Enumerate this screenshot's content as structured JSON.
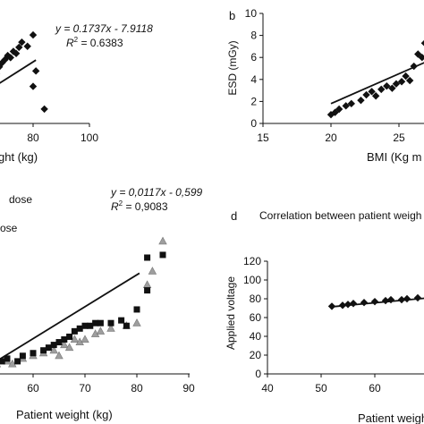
{
  "colors": {
    "ink": "#111111",
    "gray_marker": "#9e9e9e"
  },
  "chart_data": [
    {
      "id": "a",
      "panel_label": "",
      "type": "scatter",
      "xlabel": "ght (kg)",
      "ylabel": "",
      "x_ticks": [
        80,
        100
      ],
      "equation": "y = 0.1737x - 7.9118",
      "r2_label": "R",
      "r2_value": " = 0.6383",
      "fit": {
        "slope": 0.1737,
        "intercept": -7.9118
      },
      "series": [
        {
          "marker": "diamond",
          "points": [
            [
              58,
              2.1
            ],
            [
              60,
              2.8
            ],
            [
              61,
              3.4
            ],
            [
              62,
              3.2
            ],
            [
              63,
              3.9
            ],
            [
              64,
              4.6
            ],
            [
              65,
              4.2
            ],
            [
              66,
              5.0
            ],
            [
              67,
              4.8
            ],
            [
              68,
              5.5
            ],
            [
              69,
              5.9
            ],
            [
              70,
              6.2
            ],
            [
              71,
              6.6
            ],
            [
              72,
              6.4
            ],
            [
              73,
              7.0
            ],
            [
              74,
              6.8
            ],
            [
              75,
              7.4
            ],
            [
              76,
              7.9
            ],
            [
              78,
              7.5
            ],
            [
              80,
              8.6
            ],
            [
              80,
              3.6
            ],
            [
              81,
              5.1
            ],
            [
              84,
              1.4
            ]
          ]
        }
      ]
    },
    {
      "id": "b",
      "panel_label": "b",
      "type": "scatter",
      "xlabel": "BMI (Kg m",
      "ylabel": "ESD (mGy)",
      "x_ticks": [
        15,
        20,
        25
      ],
      "y_ticks": [
        0,
        2,
        4,
        6,
        8,
        10
      ],
      "fit": {
        "x0": 20,
        "y0": 1.8,
        "x1": 27,
        "y1": 5.6
      },
      "series": [
        {
          "marker": "diamond",
          "points": [
            [
              20,
              0.8
            ],
            [
              20.3,
              1.0
            ],
            [
              20.6,
              1.3
            ],
            [
              21.1,
              1.6
            ],
            [
              21.5,
              1.8
            ],
            [
              22.2,
              2.1
            ],
            [
              22.6,
              2.6
            ],
            [
              23.0,
              2.9
            ],
            [
              23.3,
              2.5
            ],
            [
              23.7,
              3.1
            ],
            [
              24.1,
              3.4
            ],
            [
              24.5,
              3.2
            ],
            [
              24.8,
              3.6
            ],
            [
              25.2,
              3.8
            ],
            [
              25.5,
              4.3
            ],
            [
              25.8,
              3.9
            ],
            [
              26.1,
              5.2
            ],
            [
              26.4,
              6.3
            ],
            [
              26.7,
              6.0
            ],
            [
              26.9,
              7.3
            ]
          ]
        }
      ]
    },
    {
      "id": "c",
      "panel_label": "",
      "type": "scatter",
      "xlabel": "Patient weight (kg)",
      "ylabel": "",
      "x_ticks": [
        60,
        70,
        80,
        90
      ],
      "legend": [
        "dose",
        "ose"
      ],
      "equation": "y = 0,0117x - 0,599",
      "r2_label": "R",
      "r2_value": " = 0,9083",
      "fit": {
        "slope": 0.0117,
        "intercept": -0.599
      },
      "series": [
        {
          "marker": "square",
          "points": [
            [
              51,
              0.005
            ],
            [
              52,
              0.02
            ],
            [
              54,
              0.02
            ],
            [
              55,
              0.03
            ],
            [
              57,
              0.02
            ],
            [
              58,
              0.04
            ],
            [
              60,
              0.05
            ],
            [
              62,
              0.06
            ],
            [
              63,
              0.07
            ],
            [
              64,
              0.08
            ],
            [
              65,
              0.09
            ],
            [
              66,
              0.1
            ],
            [
              67,
              0.11
            ],
            [
              68,
              0.13
            ],
            [
              69,
              0.14
            ],
            [
              70,
              0.15
            ],
            [
              71,
              0.15
            ],
            [
              72,
              0.16
            ],
            [
              73,
              0.16
            ],
            [
              75,
              0.16
            ],
            [
              77,
              0.17
            ],
            [
              78,
              0.15
            ],
            [
              80,
              0.21
            ],
            [
              82,
              0.28
            ],
            [
              82,
              0.4
            ],
            [
              85,
              0.41
            ]
          ]
        },
        {
          "marker": "triangle",
          "points": [
            [
              52,
              0.0
            ],
            [
              53,
              0.01
            ],
            [
              55,
              0.02
            ],
            [
              56,
              0.01
            ],
            [
              58,
              0.03
            ],
            [
              60,
              0.04
            ],
            [
              62,
              0.05
            ],
            [
              64,
              0.06
            ],
            [
              65,
              0.04
            ],
            [
              66,
              0.08
            ],
            [
              67,
              0.07
            ],
            [
              68,
              0.1
            ],
            [
              69,
              0.09
            ],
            [
              70,
              0.1
            ],
            [
              72,
              0.12
            ],
            [
              73,
              0.13
            ],
            [
              75,
              0.14
            ],
            [
              78,
              0.15
            ],
            [
              80,
              0.16
            ],
            [
              82,
              0.3
            ],
            [
              83,
              0.35
            ],
            [
              85,
              0.46
            ]
          ]
        }
      ]
    },
    {
      "id": "d",
      "panel_label": "d",
      "type": "scatter",
      "title": "Correlation between patient weigh",
      "xlabel": "Patient weigh",
      "ylabel": "Applied voltage",
      "x_ticks": [
        40,
        50,
        60
      ],
      "y_ticks": [
        0,
        20,
        40,
        60,
        80,
        100,
        120
      ],
      "fit": {
        "x0": 52,
        "y0": 71.5,
        "x1": 75,
        "y1": 83.5
      },
      "series": [
        {
          "marker": "diamond",
          "points": [
            [
              52,
              72
            ],
            [
              54,
              73
            ],
            [
              55,
              74
            ],
            [
              56,
              75
            ],
            [
              58,
              76
            ],
            [
              60,
              77
            ],
            [
              62,
              78
            ],
            [
              63,
              79
            ],
            [
              65,
              79
            ],
            [
              66,
              80
            ],
            [
              68,
              81
            ],
            [
              70,
              82
            ],
            [
              71,
              82
            ],
            [
              73,
              83
            ],
            [
              75,
              84
            ]
          ]
        }
      ]
    }
  ]
}
